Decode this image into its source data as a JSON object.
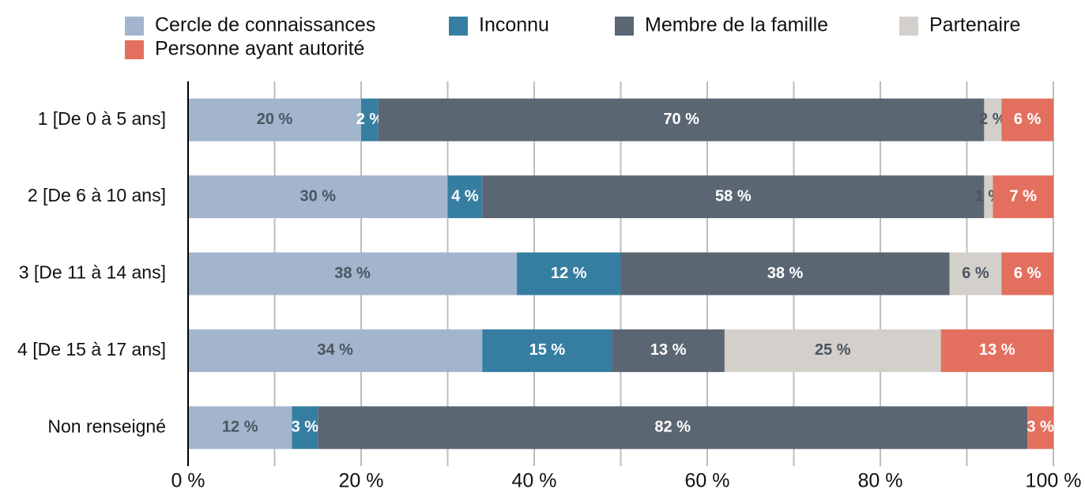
{
  "chart_data": {
    "type": "stacked_barh",
    "categories": [
      "1 [De 0 à 5 ans]",
      "2 [De 6 à 10 ans]",
      "3 [De 11 à 14 ans]",
      "4 [De 15 à 17 ans]",
      "Non renseigné"
    ],
    "series": [
      {
        "name": "Cercle de connaissances",
        "color": "#a3b5cc",
        "label_color": "#4a5560",
        "values": [
          20,
          30,
          38,
          34,
          12
        ],
        "value_labels": [
          "20 %",
          "30 %",
          "38 %",
          "34 %",
          "12 %"
        ]
      },
      {
        "name": "Inconnu",
        "color": "#367ea1",
        "label_color": "#ffffff",
        "values": [
          2,
          4,
          12,
          15,
          3
        ],
        "value_labels": [
          "2 %",
          "4 %",
          "12 %",
          "15 %",
          "3 %"
        ]
      },
      {
        "name": "Membre de la famille",
        "color": "#5b6673",
        "label_color": "#ffffff",
        "values": [
          70,
          58,
          38,
          13,
          82
        ],
        "value_labels": [
          "70 %",
          "58 %",
          "38 %",
          "13 %",
          "82 %"
        ]
      },
      {
        "name": "Partenaire",
        "color": "#d3cfcb",
        "label_color": "#4a5560",
        "values": [
          2,
          1,
          6,
          25,
          null
        ],
        "value_labels": [
          "2 %",
          "1 %",
          "6 %",
          "25 %",
          null
        ]
      },
      {
        "name": "Personne ayant autorité",
        "color": "#e3705f",
        "label_color": "#ffffff",
        "values": [
          6,
          7,
          6,
          13,
          3
        ],
        "value_labels": [
          "6 %",
          "7 %",
          "6 %",
          "13 %",
          "3 %"
        ]
      }
    ],
    "xlim": [
      0,
      100
    ],
    "xticks": [
      {
        "value": 0,
        "label": "0 %"
      },
      {
        "value": 20,
        "label": "20 %"
      },
      {
        "value": 40,
        "label": "40 %"
      },
      {
        "value": 60,
        "label": "60 %"
      },
      {
        "value": 80,
        "label": "80 %"
      },
      {
        "value": 100,
        "label": "100 %"
      }
    ],
    "minor_xticks": [
      10,
      30,
      50,
      70,
      90
    ],
    "grid": true,
    "legend": "top"
  }
}
